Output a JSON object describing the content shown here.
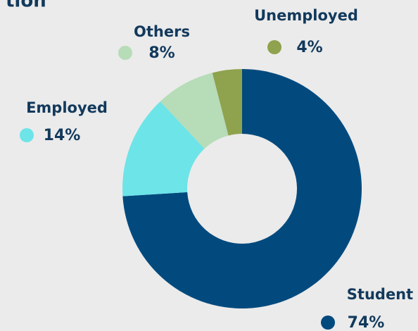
{
  "chart_data": {
    "type": "pie",
    "title": "tion",
    "categories": [
      "Student",
      "Employed",
      "Others",
      "Unemployed"
    ],
    "values": [
      74,
      14,
      8,
      4
    ],
    "value_labels": [
      "74%",
      "14%",
      "8%",
      "4%"
    ],
    "colors": [
      "#024a7e",
      "#6de4e8",
      "#b6dcb8",
      "#8fa24d"
    ],
    "donut": true
  }
}
